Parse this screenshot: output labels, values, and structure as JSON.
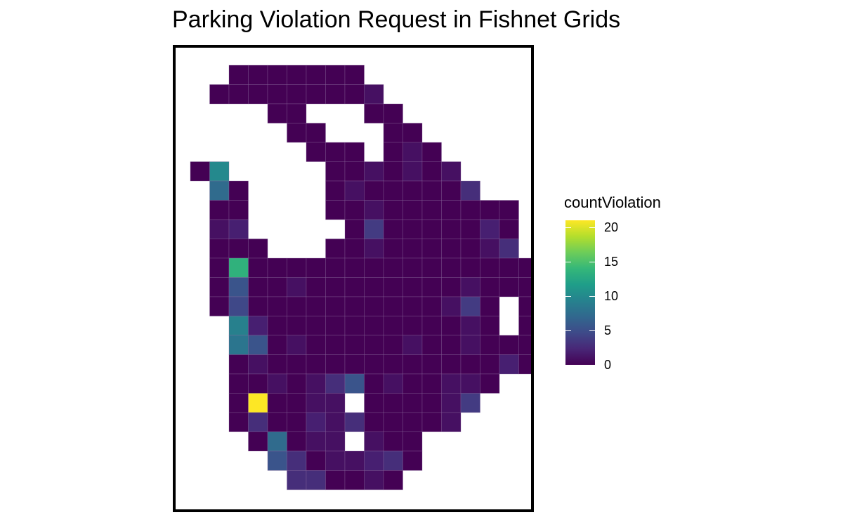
{
  "chart_data": {
    "type": "heatmap",
    "title": "Parking Violation Request in Fishnet Grids",
    "legend": {
      "title": "countViolation",
      "placement": "right",
      "range": [
        0,
        21
      ],
      "ticks": [
        0,
        5,
        10,
        15,
        20
      ],
      "tick_labels": [
        "0",
        "5",
        "10",
        "15",
        "20"
      ]
    },
    "grid_layout": "fishnet cells indexed by column (0 = leftmost) and row (0 = top)",
    "rows": [
      {
        "row": 0,
        "col_start": 2,
        "values": [
          0,
          0,
          0,
          0,
          0,
          0,
          0
        ]
      },
      {
        "row": 1,
        "col_start": 1,
        "values": [
          0,
          0,
          0,
          0,
          0,
          0,
          0,
          0,
          1
        ]
      },
      {
        "row": 2,
        "col_start": 4,
        "values": [
          0,
          0,
          null,
          null,
          null,
          0,
          0
        ]
      },
      {
        "row": 3,
        "col_start": 5,
        "values": [
          0,
          0,
          null,
          null,
          null,
          0,
          0
        ]
      },
      {
        "row": 4,
        "col_start": 6,
        "values": [
          0,
          0,
          0,
          null,
          0,
          1,
          0
        ]
      },
      {
        "row": 5,
        "col_start": 0,
        "values": [
          0,
          11,
          null,
          null,
          null,
          null,
          null,
          0,
          0,
          1,
          0,
          1,
          0,
          1
        ]
      },
      {
        "row": 6,
        "col_start": 1,
        "values": [
          8,
          0,
          null,
          null,
          null,
          null,
          0,
          1,
          0,
          0,
          0,
          0,
          0,
          3
        ]
      },
      {
        "row": 7,
        "col_start": 1,
        "values": [
          0,
          0,
          null,
          null,
          null,
          null,
          0,
          0,
          1,
          0,
          0,
          0,
          0,
          0,
          0,
          0
        ]
      },
      {
        "row": 8,
        "col_start": 1,
        "values": [
          1,
          2,
          null,
          null,
          null,
          null,
          null,
          0,
          4,
          0,
          0,
          0,
          0,
          0,
          2,
          0
        ]
      },
      {
        "row": 9,
        "col_start": 1,
        "values": [
          0,
          0,
          0,
          null,
          null,
          null,
          0,
          0,
          1,
          0,
          0,
          0,
          0,
          0,
          1,
          3
        ]
      },
      {
        "row": 10,
        "col_start": 1,
        "values": [
          0,
          15,
          0,
          0,
          0,
          0,
          0,
          0,
          0,
          0,
          0,
          0,
          0,
          0,
          0,
          0,
          0
        ]
      },
      {
        "row": 11,
        "col_start": 1,
        "values": [
          0,
          6,
          0,
          0,
          1,
          0,
          0,
          0,
          0,
          0,
          0,
          0,
          0,
          1,
          0,
          0,
          0
        ]
      },
      {
        "row": 12,
        "col_start": 1,
        "values": [
          0,
          5,
          0,
          0,
          0,
          0,
          0,
          0,
          0,
          0,
          0,
          0,
          1,
          4,
          0,
          null,
          0
        ]
      },
      {
        "row": 13,
        "col_start": 2,
        "values": [
          10,
          2,
          0,
          0,
          0,
          0,
          0,
          0,
          0,
          0,
          0,
          0,
          1,
          0,
          null,
          0
        ]
      },
      {
        "row": 14,
        "col_start": 2,
        "values": [
          9,
          6,
          0,
          1,
          0,
          0,
          0,
          0,
          0,
          1,
          0,
          0,
          1,
          0,
          0,
          0
        ]
      },
      {
        "row": 15,
        "col_start": 2,
        "values": [
          0,
          1,
          0,
          0,
          0,
          0,
          0,
          0,
          0,
          0,
          0,
          0,
          0,
          0,
          2,
          0
        ]
      },
      {
        "row": 16,
        "col_start": 2,
        "values": [
          0,
          0,
          1,
          0,
          1,
          3,
          6,
          0,
          1,
          0,
          0,
          1,
          1,
          0
        ]
      },
      {
        "row": 17,
        "col_start": 2,
        "values": [
          0,
          21,
          0,
          0,
          1,
          1,
          null,
          0,
          0,
          0,
          0,
          1,
          4
        ]
      },
      {
        "row": 18,
        "col_start": 2,
        "values": [
          0,
          3,
          0,
          0,
          2,
          1,
          3,
          0,
          0,
          0,
          0,
          1
        ]
      },
      {
        "row": 19,
        "col_start": 3,
        "values": [
          0,
          8,
          0,
          1,
          1,
          null,
          1,
          0,
          0
        ]
      },
      {
        "row": 20,
        "col_start": 4,
        "values": [
          6,
          3,
          0,
          1,
          1,
          2,
          3,
          0
        ]
      },
      {
        "row": 21,
        "col_start": 5,
        "values": [
          3,
          3,
          0,
          0,
          1,
          0
        ]
      }
    ]
  }
}
